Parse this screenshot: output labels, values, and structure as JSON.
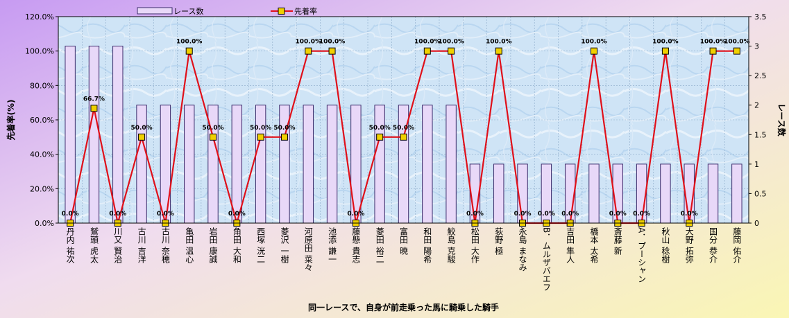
{
  "chart_data": {
    "type": "bar+line",
    "categories": [
      "丹内 祐次",
      "鷲頭 虎太",
      "川又 賢治",
      "古川 吉洋",
      "古川 奈穂",
      "亀田 温心",
      "岩田 康誠",
      "角田 大和",
      "西塚 洸二",
      "菱沢 一樹",
      "河原田 菜々",
      "池添 謙一",
      "藤懸 貴志",
      "菱田 裕二",
      "富田 暁",
      "和田 陽希",
      "鮫島 克駿",
      "松田 大作",
      "荻野 極",
      "永島 まなみ",
      "B．ムルザバエフ",
      "吉田 隼人",
      "橋本 太希",
      "斎藤 新",
      "A．プーシャン",
      "秋山 稔樹",
      "大野 拓弥",
      "国分 恭介",
      "藤岡 佑介"
    ],
    "series": [
      {
        "name": "レース数",
        "axis": "right",
        "kind": "bar",
        "color": "#e8d8f8",
        "values": [
          3,
          3,
          3,
          2,
          2,
          2,
          2,
          2,
          2,
          2,
          2,
          2,
          2,
          2,
          2,
          2,
          2,
          1,
          1,
          1,
          1,
          1,
          1,
          1,
          1,
          1,
          1,
          1,
          1
        ]
      },
      {
        "name": "先着率",
        "axis": "left",
        "kind": "line",
        "color": "#e0101a",
        "marker": "#f0d000",
        "values": [
          0,
          66.7,
          0,
          50.0,
          0,
          100.0,
          50.0,
          0,
          50.0,
          50.0,
          100.0,
          100.0,
          0,
          50.0,
          50.0,
          100.0,
          100.0,
          0,
          100.0,
          0,
          0,
          0,
          100.0,
          0,
          0,
          100.0,
          0,
          100.0,
          100.0
        ],
        "labels": [
          "0.0%",
          "66.7%",
          "0.0%",
          "50.0%",
          "0.0%",
          "100.0%",
          "50.0%",
          "0.0%",
          "50.0%",
          "50.0%",
          "100.0%",
          "100.0%",
          "0.0%",
          "50.0%",
          "50.0%",
          "100.0%",
          "100.0%",
          "0.0%",
          "100.0%",
          "0.0%",
          "0.0%",
          "0.0%",
          "100.0%",
          "0.0%",
          "0.0%",
          "100.0%",
          "0.0%",
          "100.0%",
          "100.0%"
        ]
      }
    ],
    "yLeft": {
      "label": "先着率(%)",
      "ticks": [
        "0.0%",
        "20.0%",
        "40.0%",
        "60.0%",
        "80.0%",
        "100.0%",
        "120.0%"
      ],
      "min": 0,
      "max": 120
    },
    "yRight": {
      "label": "レース数",
      "ticks": [
        "0",
        "0.5",
        "1",
        "1.5",
        "2",
        "2.5",
        "3",
        "3.5"
      ],
      "min": 0,
      "max": 3.5
    },
    "xlabel": "同一レースで、自身が前走乗った馬に騎乗した騎手",
    "legend_position": "top",
    "grid": true
  }
}
